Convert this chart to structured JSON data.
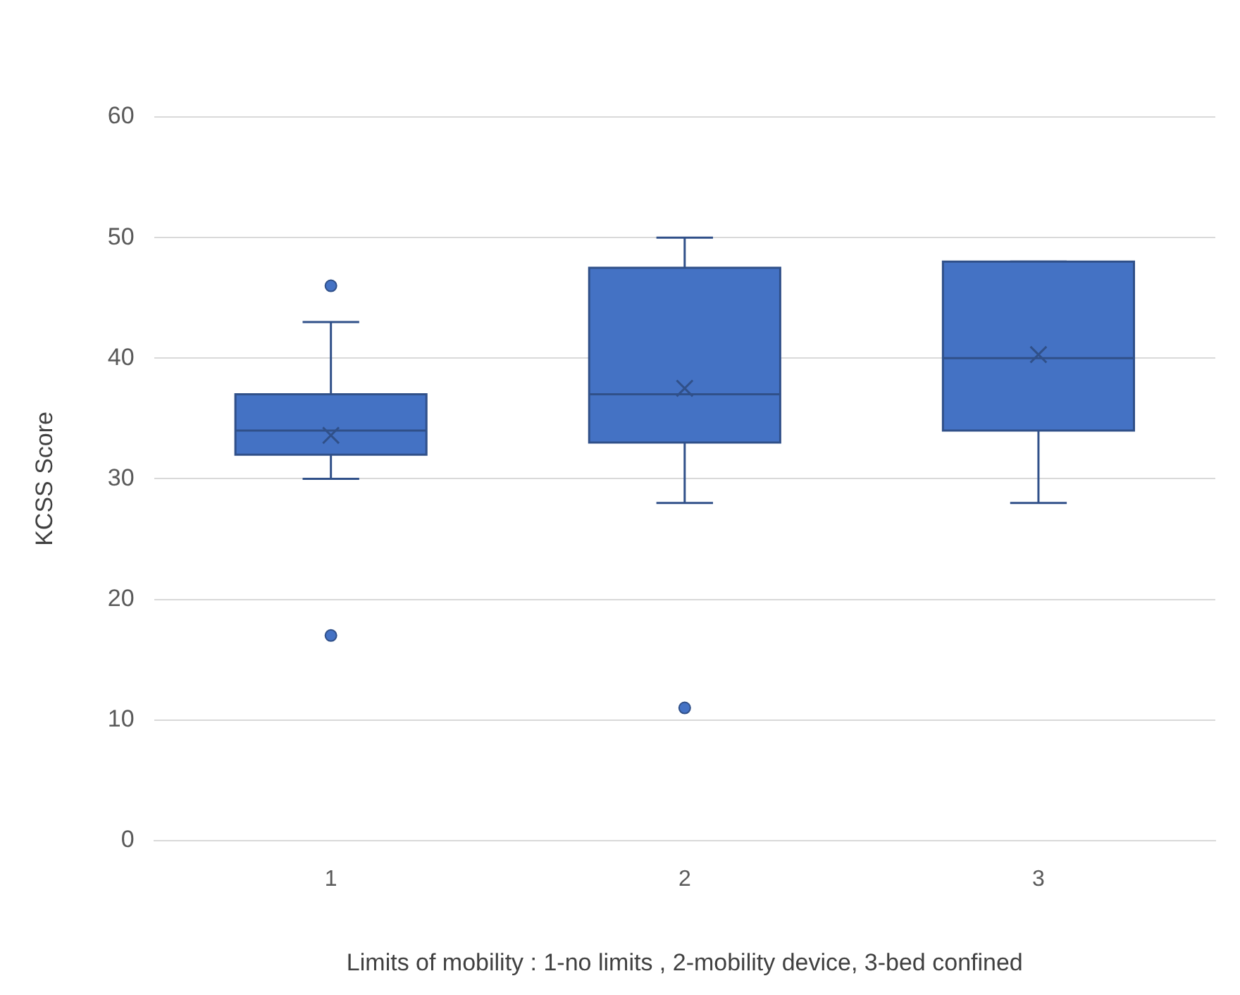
{
  "chart_data": {
    "type": "box",
    "xlabel": "Limits of mobility : 1-no limits , 2-mobility device, 3-bed confined",
    "ylabel": "KCSS Score",
    "categories": [
      "1",
      "2",
      "3"
    ],
    "color": "#4472c4",
    "boxes": [
      {
        "low": 30,
        "q1": 32,
        "median": 34,
        "q3": 37,
        "high": 43,
        "mean": 33.6,
        "outliers": [
          46,
          17
        ]
      },
      {
        "low": 28,
        "q1": 33,
        "median": 37,
        "q3": 47.5,
        "high": 50,
        "mean": 37.5,
        "outliers": [
          11
        ]
      },
      {
        "low": 28,
        "q1": 34,
        "median": 40,
        "q3": 48,
        "high": 48,
        "mean": 40.3
      }
    ],
    "ylim": [
      0,
      60
    ],
    "yticks": [
      0,
      10,
      20,
      30,
      40,
      50,
      60
    ],
    "grid": "y",
    "legend": false
  }
}
